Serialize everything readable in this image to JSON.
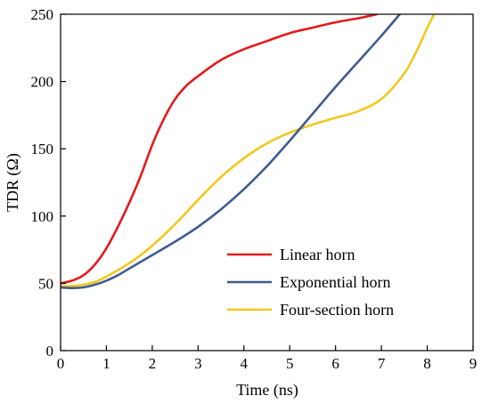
{
  "chart_data": {
    "type": "line",
    "title": "",
    "xlabel": "Time (ns)",
    "ylabel": "TDR (Ω)",
    "xlim": [
      0,
      9
    ],
    "ylim": [
      0,
      250
    ],
    "xticks": [
      "0",
      "1",
      "2",
      "3",
      "4",
      "5",
      "6",
      "7",
      "8",
      "9"
    ],
    "yticks": [
      "0",
      "50",
      "100",
      "150",
      "200",
      "250"
    ],
    "grid": false,
    "legend_position": "lower-right",
    "series": [
      {
        "name": "Linear horn",
        "color": "#e41a1c",
        "x": [
          0,
          0.25,
          0.5,
          0.75,
          1.0,
          1.25,
          1.5,
          1.75,
          2.0,
          2.25,
          2.5,
          2.75,
          3.0,
          3.5,
          4.0,
          4.5,
          5.0,
          5.5,
          6.0,
          6.5,
          6.9
        ],
        "y": [
          50,
          52,
          56,
          64,
          76,
          92,
          110,
          130,
          153,
          172,
          187,
          197,
          204,
          216,
          224,
          230,
          236,
          240,
          244,
          247,
          250
        ]
      },
      {
        "name": "Exponential horn",
        "color": "#3f5c8f",
        "x": [
          0,
          0.25,
          0.5,
          0.75,
          1.0,
          1.25,
          1.5,
          2.0,
          2.5,
          3.0,
          3.5,
          4.0,
          4.5,
          5.0,
          5.5,
          6.0,
          6.5,
          7.0,
          7.4
        ],
        "y": [
          47,
          46.5,
          47,
          49,
          52,
          56,
          61,
          71,
          81,
          92,
          105,
          120,
          137,
          156,
          176,
          196,
          215,
          234,
          250
        ]
      },
      {
        "name": "Four-section horn",
        "color": "#f2c81d",
        "x": [
          0,
          0.25,
          0.5,
          0.75,
          1.0,
          1.5,
          2.0,
          2.5,
          3.0,
          3.5,
          4.0,
          4.5,
          5.0,
          5.5,
          6.0,
          6.5,
          7.0,
          7.5,
          7.8,
          8.0,
          8.15
        ],
        "y": [
          48,
          48,
          49,
          51,
          55,
          65,
          78,
          94,
          112,
          129,
          143,
          154,
          162,
          168,
          173,
          178,
          187,
          206,
          225,
          240,
          250
        ]
      }
    ]
  }
}
